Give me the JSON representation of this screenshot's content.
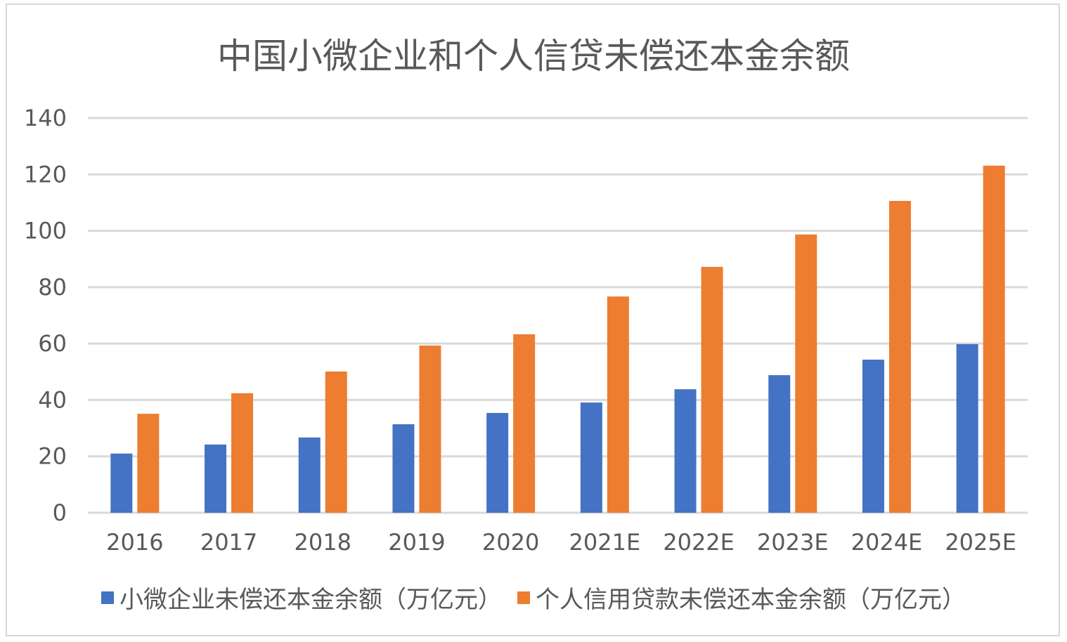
{
  "chart_data": {
    "type": "bar",
    "title": "中国小微企业和个人信贷未偿还本金余额",
    "categories": [
      "2016",
      "2017",
      "2018",
      "2019",
      "2020",
      "2021E",
      "2022E",
      "2023E",
      "2024E",
      "2025E"
    ],
    "series": [
      {
        "name": "小微企业未偿还本金余额（万亿元）",
        "color": "#4472c4",
        "values": [
          21,
          24.2,
          26.7,
          31.4,
          35.4,
          39.1,
          43.8,
          48.8,
          54.3,
          59.8
        ]
      },
      {
        "name": "个人信用贷款未偿还本金余额（万亿元）",
        "color": "#ed7d31",
        "values": [
          35.1,
          42.4,
          50.1,
          59.3,
          63.3,
          76.7,
          87.2,
          98.7,
          110.6,
          123.1
        ]
      }
    ],
    "xlabel": "",
    "ylabel": "",
    "ylim": [
      0,
      140
    ],
    "yticks": [
      0,
      20,
      40,
      60,
      80,
      100,
      120,
      140
    ],
    "grid": true,
    "legend": "bottom"
  }
}
